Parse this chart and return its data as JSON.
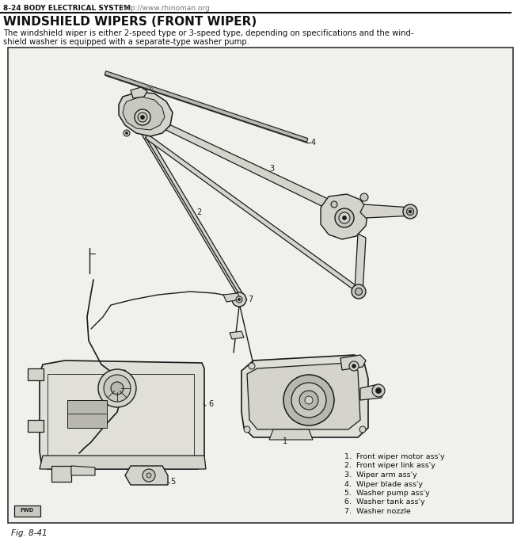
{
  "page_header_bold": "8-24 BODY ELECTRICAL SYSTEM",
  "page_header_url": "http://www.rhinoman.org",
  "title": "WINDSHIELD WIPERS (FRONT WIPER)",
  "desc_line1": "The windshield wiper is either 2-speed type or 3-speed type, depending on specifications and the wind-",
  "desc_line2": "shield washer is equipped with a separate-type washer pump.",
  "fig_label": "Fig. 8-41",
  "legend_items": [
    "1.  Front wiper motor ass'y",
    "2.  Front wiper link ass'y",
    "3.  Wiper arm ass'y",
    "4.  Wiper blade ass'y",
    "5.  Washer pump ass'y",
    "6.  Washer tank ass'y",
    "7.  Washer nozzle"
  ],
  "bg_color": "#ffffff",
  "diagram_bg": "#f0f0ec",
  "header_line_color": "#111111",
  "text_color": "#111111",
  "url_color": "#777777",
  "dk": "#1a1a1a"
}
